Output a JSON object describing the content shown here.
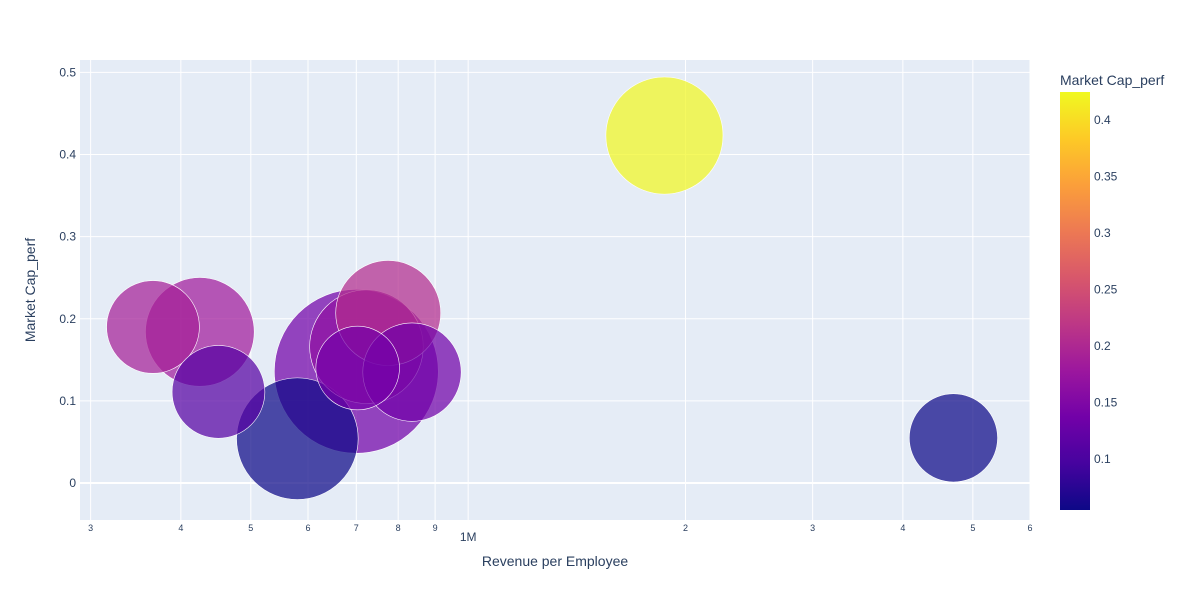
{
  "chart_data": {
    "type": "scatter",
    "subtype": "bubble",
    "title": "",
    "xlabel": "Revenue per Employee",
    "ylabel": "Market Cap_perf",
    "x_scale": "log",
    "xlim": [
      290000,
      6000000
    ],
    "ylim": [
      -0.045,
      0.515
    ],
    "x_ticks": [
      {
        "value": 300000,
        "label": "3"
      },
      {
        "value": 400000,
        "label": "4"
      },
      {
        "value": 500000,
        "label": "5"
      },
      {
        "value": 600000,
        "label": "6"
      },
      {
        "value": 700000,
        "label": "7"
      },
      {
        "value": 800000,
        "label": "8"
      },
      {
        "value": 900000,
        "label": "9"
      },
      {
        "value": 1000000,
        "label": "1M"
      },
      {
        "value": 2000000,
        "label": "2"
      },
      {
        "value": 3000000,
        "label": "3"
      },
      {
        "value": 4000000,
        "label": "4"
      },
      {
        "value": 5000000,
        "label": "5"
      },
      {
        "value": 6000000,
        "label": "6"
      }
    ],
    "y_ticks": [
      {
        "value": 0,
        "label": "0"
      },
      {
        "value": 0.1,
        "label": "0.1"
      },
      {
        "value": 0.2,
        "label": "0.2"
      },
      {
        "value": 0.3,
        "label": "0.3"
      },
      {
        "value": 0.4,
        "label": "0.4"
      },
      {
        "value": 0.5,
        "label": "0.5"
      }
    ],
    "grid": true,
    "colorbar": {
      "title": "Market Cap_perf",
      "range": [
        0.055,
        0.425
      ],
      "ticks": [
        {
          "value": 0.1,
          "label": "0.1"
        },
        {
          "value": 0.15,
          "label": "0.15"
        },
        {
          "value": 0.2,
          "label": "0.2"
        },
        {
          "value": 0.25,
          "label": "0.25"
        },
        {
          "value": 0.3,
          "label": "0.3"
        },
        {
          "value": 0.35,
          "label": "0.35"
        },
        {
          "value": 0.4,
          "label": "0.4"
        }
      ],
      "colorscale": [
        "#0d0887",
        "#46039f",
        "#7201a8",
        "#9c179e",
        "#bd3786",
        "#d8576b",
        "#ed7953",
        "#fb9f3a",
        "#fdca26",
        "#f0f921"
      ]
    },
    "points": [
      {
        "x": 700000,
        "y": 0.136,
        "size": 1.0
      },
      {
        "x": 580000,
        "y": 0.054,
        "size": 0.55
      },
      {
        "x": 1870000,
        "y": 0.423,
        "size": 0.51
      },
      {
        "x": 723000,
        "y": 0.166,
        "size": 0.48
      },
      {
        "x": 425000,
        "y": 0.184,
        "size": 0.44
      },
      {
        "x": 775000,
        "y": 0.207,
        "size": 0.41
      },
      {
        "x": 836000,
        "y": 0.135,
        "size": 0.36
      },
      {
        "x": 366000,
        "y": 0.19,
        "size": 0.32
      },
      {
        "x": 451000,
        "y": 0.111,
        "size": 0.32
      },
      {
        "x": 4700000,
        "y": 0.055,
        "size": 0.29
      },
      {
        "x": 703000,
        "y": 0.14,
        "size": 0.26
      }
    ]
  }
}
